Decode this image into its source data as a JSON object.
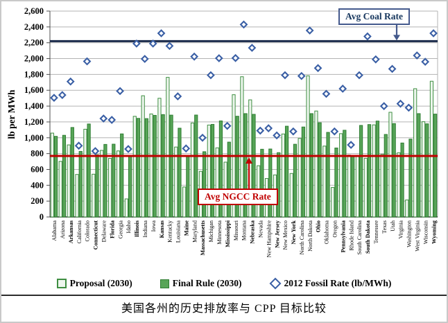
{
  "figure": {
    "annotations": {
      "coal_label": "Avg Coal Rate",
      "ngcc_label": "Avg NGCC Rate"
    },
    "legend": {
      "proposal": "Proposal (2030)",
      "final": "Final Rule (2030)",
      "fossil": "2012 Fossil Rate (lb/MWh)"
    },
    "caption": "美国各州的历史排放率与 CPP 目标比较"
  },
  "colors": {
    "proposal_fill": "#edf6ed",
    "proposal_stroke": "#3e8e41",
    "final_fill": "#58a558",
    "final_stroke": "#2e7d32",
    "diamond_stroke": "#3a5fa5",
    "diamond_fill": "#ffffff",
    "coal_line": "#1a2a4a",
    "ngcc_line": "#c00000",
    "grid": "#b3b3b3",
    "axis": "#4d4d4d",
    "text": "#000000"
  },
  "chart_data": {
    "type": "bar",
    "subtype": "grouped-bars-with-scatter-overlay",
    "title": "",
    "xlabel": "",
    "ylabel": "lb per MWh",
    "ylim": [
      0,
      2600
    ],
    "ytick_step": 200,
    "grid": true,
    "legend_position": "bottom",
    "reference_lines": [
      {
        "label": "Avg Coal Rate",
        "value": 2220
      },
      {
        "label": "Avg NGCC Rate",
        "value": 770
      }
    ],
    "categories": [
      "Alabama",
      "Arizona",
      "Arkansas",
      "California",
      "Colorado",
      "Connecticut",
      "Delaware",
      "Florida",
      "Georgia",
      "Idaho",
      "Illinois",
      "Indiana",
      "Iowa",
      "Kansas",
      "Kentucky",
      "Louisiana",
      "Maine",
      "Maryland",
      "Massachusetts",
      "Michigan",
      "Minnesota",
      "Mississippi",
      "Missouri",
      "Montana",
      "Nebraska",
      "Nevada",
      "New Hampshire",
      "New Jersey",
      "New Mexico",
      "New York",
      "North Carolina",
      "North Dakota",
      "Ohio",
      "Oklahoma",
      "Oregon",
      "Pennsylvania",
      "Rhode Island",
      "South Carolina",
      "South Dakota",
      "Tennessee",
      "Texas",
      "Utah",
      "Virginia",
      "Washington",
      "West Virginia",
      "Wisconsin",
      "Wyoming"
    ],
    "bold_categories": [
      "Arkansas",
      "Connecticut",
      "Florida",
      "Illinois",
      "Kansas",
      "Maine",
      "Massachusetts",
      "Mississippi",
      "Nebraska",
      "New Jersey",
      "New York",
      "Ohio",
      "Pennsylvania",
      "South Dakota",
      "Wyoming"
    ],
    "series": [
      {
        "name": "Proposal (2030)",
        "type": "bar",
        "values": [
          1059,
          702,
          910,
          537,
          1108,
          540,
          841,
          740,
          834,
          228,
          1271,
          1531,
          1301,
          1499,
          1763,
          883,
          378,
          1187,
          576,
          1161,
          873,
          692,
          1544,
          1771,
          1479,
          647,
          486,
          531,
          1048,
          549,
          992,
          1783,
          1338,
          895,
          372,
          1052,
          782,
          772,
          741,
          1163,
          791,
          1322,
          810,
          215,
          1620,
          1203,
          1714
        ]
      },
      {
        "name": "Final Rule (2030)",
        "type": "bar",
        "values": [
          1018,
          1031,
          1130,
          828,
          1174,
          786,
          916,
          919,
          1049,
          771,
          1245,
          1242,
          1283,
          1293,
          1286,
          1121,
          779,
          1287,
          824,
          1169,
          1213,
          945,
          1272,
          1305,
          1296,
          855,
          858,
          812,
          1146,
          918,
          1136,
          1305,
          1190,
          1068,
          871,
          1095,
          771,
          1156,
          1167,
          1211,
          1042,
          1179,
          934,
          983,
          1305,
          1176,
          1299
        ]
      },
      {
        "name": "2012 Fossil Rate (lb/MWh)",
        "type": "scatter",
        "marker": "open-diamond",
        "values": [
          1505,
          1540,
          1710,
          900,
          1965,
          832,
          1243,
          1226,
          1590,
          858,
          2190,
          1996,
          2190,
          2320,
          2160,
          1523,
          865,
          2025,
          1000,
          1790,
          2005,
          1150,
          2007,
          2430,
          2136,
          1090,
          1120,
          1030,
          1790,
          1080,
          1780,
          2355,
          1880,
          1555,
          1080,
          1620,
          910,
          1790,
          2280,
          1990,
          1400,
          1870,
          1430,
          1380,
          2040,
          1960,
          2320
        ]
      }
    ]
  }
}
